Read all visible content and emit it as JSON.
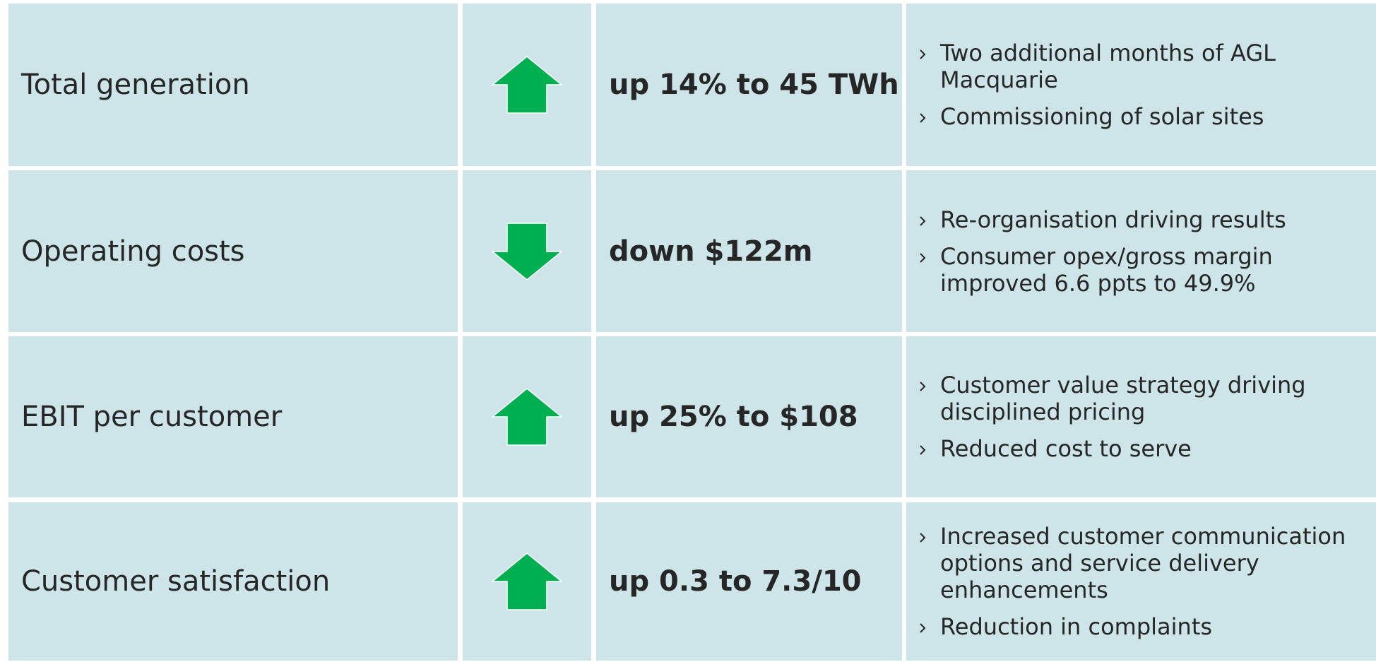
{
  "table": {
    "rows": [
      {
        "label": "Total generation",
        "value": "up 14% to 45 TWh",
        "notes": [
          "Two additional months of AGL Macquarie",
          "Commissioning of solar sites"
        ]
      },
      {
        "label": "Operating costs",
        "value": "down $122m",
        "notes": [
          "Re-organisation driving results",
          "Consumer opex/gross margin improved 6.6 ppts to 49.9%"
        ]
      },
      {
        "label": "EBIT per customer",
        "value": "up 25% to $108",
        "notes": [
          "Customer value strategy driving disciplined pricing",
          "Reduced cost to serve"
        ]
      },
      {
        "label": "Customer satisfaction",
        "value": "up 0.3 to 7.3/10",
        "notes": [
          "Increased customer communication options and service delivery enhancements",
          "Reduction in complaints"
        ]
      }
    ]
  }
}
